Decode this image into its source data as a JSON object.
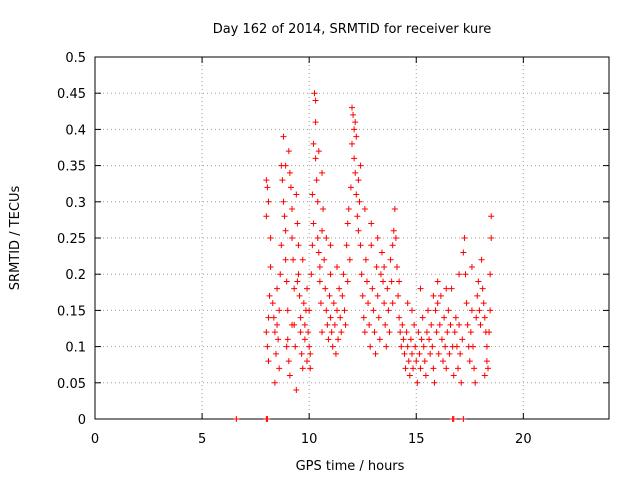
{
  "chart_data": {
    "type": "scatter",
    "title": "Day 162 of 2014, SRMTID for receiver kure",
    "xlabel": "GPS time / hours",
    "ylabel": "SRMTID / TECUs",
    "xlim": [
      0,
      24
    ],
    "ylim": [
      0,
      0.5
    ],
    "xticks": [
      0,
      5,
      10,
      15,
      20
    ],
    "xtick_labels": [
      "0",
      "5",
      "10",
      "15",
      "20"
    ],
    "yticks": [
      0,
      0.05,
      0.1,
      0.15,
      0.2,
      0.25,
      0.3,
      0.35,
      0.4,
      0.45,
      0.5
    ],
    "ytick_labels": [
      "0",
      "0.05",
      "0.1",
      "0.15",
      "0.2",
      "0.25",
      "0.3",
      "0.35",
      "0.4",
      "0.45",
      "0.5"
    ],
    "grid": true,
    "marker": "+",
    "color": "#ff0000",
    "series": [
      {
        "name": "SRMTID",
        "points": [
          [
            6.6,
            0
          ],
          [
            8.0,
            0
          ],
          [
            8.05,
            0
          ],
          [
            16.7,
            0
          ],
          [
            16.75,
            0
          ],
          [
            17.2,
            0
          ],
          [
            8.0,
            0.33
          ],
          [
            8.05,
            0.32
          ],
          [
            8.1,
            0.3
          ],
          [
            8.0,
            0.28
          ],
          [
            8.1,
            0.14
          ],
          [
            8.0,
            0.12
          ],
          [
            8.05,
            0.1
          ],
          [
            8.1,
            0.08
          ],
          [
            8.2,
            0.25
          ],
          [
            8.2,
            0.21
          ],
          [
            8.15,
            0.17
          ],
          [
            8.3,
            0.16
          ],
          [
            8.35,
            0.14
          ],
          [
            8.4,
            0.12
          ],
          [
            8.45,
            0.09
          ],
          [
            8.5,
            0.18
          ],
          [
            8.5,
            0.13
          ],
          [
            8.55,
            0.11
          ],
          [
            8.6,
            0.15
          ],
          [
            8.65,
            0.2
          ],
          [
            8.7,
            0.24
          ],
          [
            8.7,
            0.35
          ],
          [
            8.75,
            0.33
          ],
          [
            8.8,
            0.39
          ],
          [
            8.8,
            0.3
          ],
          [
            8.85,
            0.28
          ],
          [
            8.9,
            0.26
          ],
          [
            8.9,
            0.22
          ],
          [
            8.95,
            0.19
          ],
          [
            9.0,
            0.15
          ],
          [
            9.0,
            0.11
          ],
          [
            9.05,
            0.08
          ],
          [
            9.1,
            0.06
          ],
          [
            9.1,
            0.34
          ],
          [
            9.15,
            0.32
          ],
          [
            9.2,
            0.29
          ],
          [
            9.2,
            0.25
          ],
          [
            9.25,
            0.22
          ],
          [
            9.3,
            0.18
          ],
          [
            9.3,
            0.13
          ],
          [
            9.35,
            0.1
          ],
          [
            9.4,
            0.04
          ],
          [
            9.4,
            0.31
          ],
          [
            9.45,
            0.27
          ],
          [
            9.5,
            0.24
          ],
          [
            9.5,
            0.2
          ],
          [
            9.55,
            0.17
          ],
          [
            9.6,
            0.14
          ],
          [
            9.6,
            0.12
          ],
          [
            9.65,
            0.09
          ],
          [
            9.7,
            0.07
          ],
          [
            9.75,
            0.16
          ],
          [
            9.8,
            0.13
          ],
          [
            9.8,
            0.11
          ],
          [
            9.85,
            0.15
          ],
          [
            9.9,
            0.18
          ],
          [
            9.95,
            0.12
          ],
          [
            10.0,
            0.15
          ],
          [
            10.0,
            0.1
          ],
          [
            10.05,
            0.09
          ],
          [
            10.1,
            0.2
          ],
          [
            10.15,
            0.24
          ],
          [
            10.2,
            0.27
          ],
          [
            10.2,
            0.38
          ],
          [
            10.25,
            0.45
          ],
          [
            10.3,
            0.44
          ],
          [
            10.3,
            0.41
          ],
          [
            10.35,
            0.33
          ],
          [
            10.4,
            0.3
          ],
          [
            10.4,
            0.25
          ],
          [
            10.45,
            0.23
          ],
          [
            10.5,
            0.21
          ],
          [
            10.5,
            0.19
          ],
          [
            10.55,
            0.16
          ],
          [
            10.6,
            0.12
          ],
          [
            10.6,
            0.26
          ],
          [
            10.65,
            0.29
          ],
          [
            10.7,
            0.22
          ],
          [
            10.75,
            0.18
          ],
          [
            10.8,
            0.15
          ],
          [
            10.85,
            0.13
          ],
          [
            10.9,
            0.11
          ],
          [
            10.95,
            0.17
          ],
          [
            11.0,
            0.14
          ],
          [
            11.0,
            0.2
          ],
          [
            11.05,
            0.12
          ],
          [
            11.1,
            0.1
          ],
          [
            11.15,
            0.16
          ],
          [
            11.2,
            0.13
          ],
          [
            11.25,
            0.09
          ],
          [
            11.3,
            0.15
          ],
          [
            11.35,
            0.11
          ],
          [
            11.4,
            0.18
          ],
          [
            11.45,
            0.14
          ],
          [
            11.5,
            0.12
          ],
          [
            11.55,
            0.17
          ],
          [
            11.6,
            0.2
          ],
          [
            11.65,
            0.15
          ],
          [
            11.7,
            0.13
          ],
          [
            11.75,
            0.24
          ],
          [
            11.8,
            0.27
          ],
          [
            11.85,
            0.29
          ],
          [
            11.9,
            0.22
          ],
          [
            11.95,
            0.32
          ],
          [
            12.0,
            0.38
          ],
          [
            12.0,
            0.43
          ],
          [
            12.05,
            0.42
          ],
          [
            12.1,
            0.4
          ],
          [
            12.1,
            0.36
          ],
          [
            12.15,
            0.34
          ],
          [
            12.2,
            0.31
          ],
          [
            12.25,
            0.28
          ],
          [
            12.3,
            0.26
          ],
          [
            12.3,
            0.33
          ],
          [
            12.35,
            0.3
          ],
          [
            12.4,
            0.24
          ],
          [
            12.45,
            0.2
          ],
          [
            12.5,
            0.17
          ],
          [
            12.55,
            0.14
          ],
          [
            12.6,
            0.12
          ],
          [
            12.65,
            0.22
          ],
          [
            12.7,
            0.19
          ],
          [
            12.75,
            0.16
          ],
          [
            12.8,
            0.13
          ],
          [
            12.85,
            0.1
          ],
          [
            12.9,
            0.24
          ],
          [
            12.95,
            0.18
          ],
          [
            13.0,
            0.15
          ],
          [
            13.05,
            0.12
          ],
          [
            13.1,
            0.09
          ],
          [
            13.15,
            0.21
          ],
          [
            13.2,
            0.17
          ],
          [
            13.25,
            0.14
          ],
          [
            13.3,
            0.11
          ],
          [
            13.35,
            0.2
          ],
          [
            13.4,
            0.23
          ],
          [
            13.45,
            0.19
          ],
          [
            13.5,
            0.16
          ],
          [
            13.55,
            0.13
          ],
          [
            13.6,
            0.1
          ],
          [
            13.65,
            0.18
          ],
          [
            13.7,
            0.15
          ],
          [
            13.75,
            0.12
          ],
          [
            13.8,
            0.22
          ],
          [
            13.85,
            0.19
          ],
          [
            13.9,
            0.16
          ],
          [
            13.95,
            0.26
          ],
          [
            14.0,
            0.29
          ],
          [
            14.05,
            0.25
          ],
          [
            14.1,
            0.21
          ],
          [
            14.15,
            0.17
          ],
          [
            14.2,
            0.14
          ],
          [
            14.25,
            0.12
          ],
          [
            14.3,
            0.1
          ],
          [
            14.35,
            0.13
          ],
          [
            14.4,
            0.11
          ],
          [
            14.45,
            0.09
          ],
          [
            14.5,
            0.07
          ],
          [
            14.55,
            0.12
          ],
          [
            14.6,
            0.1
          ],
          [
            14.65,
            0.08
          ],
          [
            14.7,
            0.06
          ],
          [
            14.75,
            0.11
          ],
          [
            14.8,
            0.09
          ],
          [
            14.85,
            0.07
          ],
          [
            14.9,
            0.13
          ],
          [
            14.95,
            0.1
          ],
          [
            15.0,
            0.08
          ],
          [
            15.05,
            0.05
          ],
          [
            15.1,
            0.12
          ],
          [
            15.15,
            0.09
          ],
          [
            15.2,
            0.07
          ],
          [
            15.25,
            0.11
          ],
          [
            15.3,
            0.14
          ],
          [
            15.35,
            0.1
          ],
          [
            15.4,
            0.08
          ],
          [
            15.45,
            0.06
          ],
          [
            15.5,
            0.12
          ],
          [
            15.55,
            0.15
          ],
          [
            15.6,
            0.11
          ],
          [
            15.65,
            0.09
          ],
          [
            15.7,
            0.13
          ],
          [
            15.75,
            0.1
          ],
          [
            15.8,
            0.07
          ],
          [
            15.85,
            0.05
          ],
          [
            15.9,
            0.15
          ],
          [
            15.95,
            0.12
          ],
          [
            16.0,
            0.16
          ],
          [
            16.05,
            0.09
          ],
          [
            16.1,
            0.13
          ],
          [
            16.15,
            0.17
          ],
          [
            16.2,
            0.11
          ],
          [
            16.25,
            0.08
          ],
          [
            16.3,
            0.14
          ],
          [
            16.35,
            0.1
          ],
          [
            16.4,
            0.07
          ],
          [
            16.45,
            0.12
          ],
          [
            16.5,
            0.15
          ],
          [
            16.55,
            0.09
          ],
          [
            16.6,
            0.13
          ],
          [
            16.65,
            0.18
          ],
          [
            16.7,
            0.1
          ],
          [
            16.75,
            0.06
          ],
          [
            16.8,
            0.12
          ],
          [
            16.85,
            0.14
          ],
          [
            16.9,
            0.1
          ],
          [
            16.95,
            0.07
          ],
          [
            17.0,
            0.13
          ],
          [
            17.05,
            0.09
          ],
          [
            17.1,
            0.05
          ],
          [
            17.15,
            0.11
          ],
          [
            17.2,
            0.23
          ],
          [
            17.25,
            0.25
          ],
          [
            17.3,
            0.2
          ],
          [
            17.35,
            0.16
          ],
          [
            17.4,
            0.13
          ],
          [
            17.45,
            0.1
          ],
          [
            17.5,
            0.08
          ],
          [
            17.55,
            0.12
          ],
          [
            17.6,
            0.15
          ],
          [
            17.65,
            0.1
          ],
          [
            17.7,
            0.07
          ],
          [
            17.75,
            0.05
          ],
          [
            17.8,
            0.14
          ],
          [
            17.85,
            0.17
          ],
          [
            17.9,
            0.19
          ],
          [
            17.95,
            0.15
          ],
          [
            18.0,
            0.13
          ],
          [
            18.05,
            0.22
          ],
          [
            18.1,
            0.18
          ],
          [
            18.15,
            0.16
          ],
          [
            18.2,
            0.14
          ],
          [
            18.25,
            0.12
          ],
          [
            18.3,
            0.1
          ],
          [
            18.35,
            0.07
          ],
          [
            18.4,
            0.12
          ],
          [
            18.45,
            0.2
          ],
          [
            18.5,
            0.25
          ],
          [
            18.5,
            0.28
          ],
          [
            18.45,
            0.15
          ],
          [
            18.3,
            0.08
          ],
          [
            18.2,
            0.06
          ],
          [
            17.6,
            0.21
          ],
          [
            17.0,
            0.2
          ],
          [
            16.4,
            0.18
          ],
          [
            16.0,
            0.19
          ],
          [
            15.8,
            0.17
          ],
          [
            15.2,
            0.18
          ],
          [
            14.8,
            0.15
          ],
          [
            14.6,
            0.16
          ],
          [
            14.2,
            0.19
          ],
          [
            13.9,
            0.24
          ],
          [
            13.5,
            0.21
          ],
          [
            13.2,
            0.25
          ],
          [
            12.9,
            0.27
          ],
          [
            12.6,
            0.29
          ],
          [
            12.4,
            0.35
          ],
          [
            12.2,
            0.39
          ],
          [
            12.15,
            0.41
          ],
          [
            11.8,
            0.19
          ],
          [
            11.3,
            0.21
          ],
          [
            11.0,
            0.24
          ],
          [
            10.8,
            0.25
          ],
          [
            10.6,
            0.34
          ],
          [
            10.45,
            0.37
          ],
          [
            10.3,
            0.36
          ],
          [
            10.15,
            0.31
          ],
          [
            10.05,
            0.07
          ],
          [
            9.9,
            0.08
          ],
          [
            9.7,
            0.22
          ],
          [
            9.45,
            0.19
          ],
          [
            9.2,
            0.13
          ],
          [
            8.95,
            0.1
          ],
          [
            8.6,
            0.07
          ],
          [
            8.4,
            0.05
          ],
          [
            8.9,
            0.35
          ],
          [
            9.05,
            0.37
          ]
        ]
      }
    ]
  }
}
